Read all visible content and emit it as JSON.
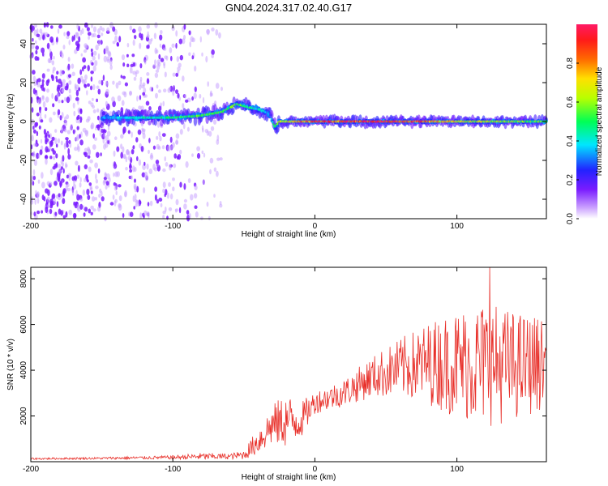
{
  "figure_title": "GN04.2024.317.02.40.G17",
  "chart_data": [
    {
      "type": "heatmap",
      "xlabel": "Height of straight line (km)",
      "ylabel": "Frequency (Hz)",
      "xlim": [
        -200,
        163
      ],
      "ylim": [
        -50,
        50
      ],
      "xticks": [
        -200,
        -100,
        0,
        100
      ],
      "yticks": [
        -40,
        -20,
        0,
        20,
        40
      ],
      "colorbar": {
        "label": "Normalized spectral amplitude",
        "range": [
          0,
          1
        ],
        "ticks": [
          "0.0",
          "0.2",
          "0.4",
          "0.6",
          "0.8"
        ]
      },
      "ridge": {
        "x": [
          -150,
          -120,
          -100,
          -80,
          -65,
          -55,
          -45,
          -38,
          -32,
          -28,
          -25,
          0,
          50,
          100,
          163
        ],
        "freq": [
          2,
          2,
          2,
          3,
          5,
          9,
          7,
          6,
          4,
          -3,
          0,
          0,
          0,
          0,
          0
        ],
        "amplitude": [
          0.35,
          0.45,
          0.5,
          0.55,
          0.55,
          0.55,
          0.5,
          0.45,
          0.35,
          0.5,
          0.6,
          0.9,
          1.0,
          0.7,
          0.55
        ]
      },
      "noise_region_x": [
        -200,
        -65
      ]
    },
    {
      "type": "line",
      "xlabel": "Height of straight line (km)",
      "ylabel": "SNR (10 * v/v)",
      "xlim": [
        -200,
        163
      ],
      "ylim": [
        0,
        8500
      ],
      "xticks": [
        -200,
        -100,
        0,
        100
      ],
      "yticks": [
        2000,
        4000,
        6000,
        8000
      ],
      "color": "#e8302a",
      "envelope": {
        "x": [
          -200,
          -150,
          -100,
          -80,
          -60,
          -50,
          -40,
          -30,
          -20,
          -10,
          0,
          20,
          40,
          60,
          80,
          100,
          120,
          140,
          163
        ],
        "mean": [
          130,
          150,
          190,
          230,
          230,
          300,
          900,
          1600,
          1800,
          1800,
          2600,
          3000,
          3700,
          4100,
          4300,
          4300,
          4300,
          4200,
          4300
        ],
        "amplitude": [
          40,
          50,
          80,
          150,
          120,
          200,
          600,
          900,
          1200,
          800,
          500,
          600,
          900,
          1300,
          1800,
          2400,
          2800,
          2400,
          2000
        ]
      },
      "peak": {
        "x": 123,
        "y": 8500
      }
    }
  ]
}
